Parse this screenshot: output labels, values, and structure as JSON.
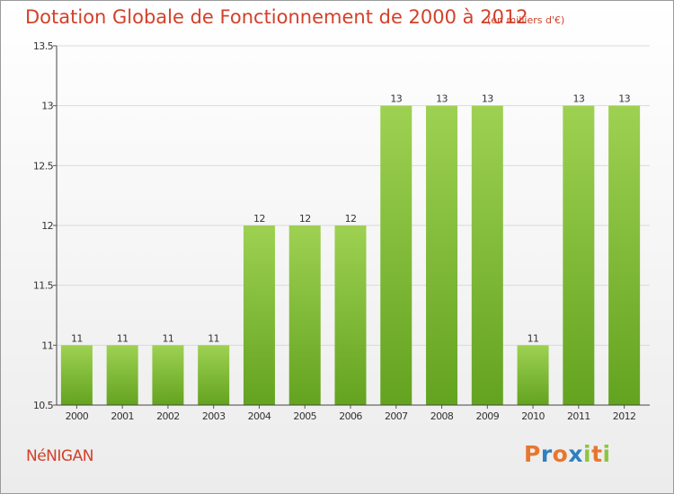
{
  "title": "Dotation Globale de Fonctionnement de 2000 à 2012",
  "subtitle": "(en milliers d'€)",
  "commune": "NéNIGAN",
  "logo": {
    "letters": [
      "P",
      "r",
      "o",
      "x",
      "i",
      "t",
      "i"
    ],
    "colors": [
      "#e8772e",
      "#2f7fc1",
      "#e8772e",
      "#2f7fc1",
      "#8dc63f",
      "#e8772e",
      "#8dc63f"
    ]
  },
  "colors": {
    "bar": "#8cc63f",
    "bar_dark": "#5d9d1b",
    "title": "#d2412a",
    "grid": "#dadada"
  },
  "chart_data": {
    "type": "bar",
    "title": "Dotation Globale de Fonctionnement de 2000 à 2012",
    "subtitle": "(en milliers d'€)",
    "xlabel": "",
    "ylabel": "",
    "categories": [
      "2000",
      "2001",
      "2002",
      "2003",
      "2004",
      "2005",
      "2006",
      "2007",
      "2008",
      "2009",
      "2010",
      "2011",
      "2012"
    ],
    "values": [
      11,
      11,
      11,
      11,
      12,
      12,
      12,
      13,
      13,
      13,
      11,
      13,
      13
    ],
    "data_labels": [
      "11",
      "11",
      "11",
      "11",
      "12",
      "12",
      "12",
      "13",
      "13",
      "13",
      "11",
      "13",
      "13"
    ],
    "ylim": [
      10.5,
      13.5
    ],
    "yticks": [
      10.5,
      11,
      11.5,
      12,
      12.5,
      13,
      13.5
    ],
    "ytick_labels": [
      "10.5",
      "11",
      "11.5",
      "12",
      "12.5",
      "13",
      "13.5"
    ],
    "grid": "horizontal",
    "legend": "none"
  }
}
